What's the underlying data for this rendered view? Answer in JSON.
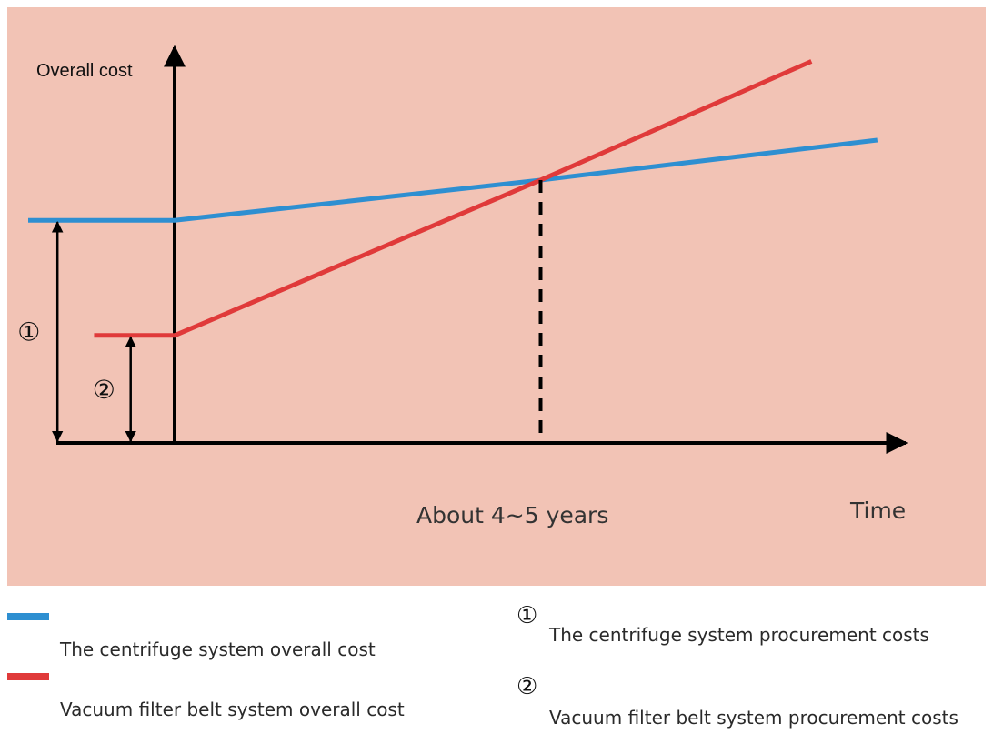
{
  "chart_data": {
    "type": "line",
    "ylabel": "Overall cost",
    "xlabel": "Time",
    "annotation_x_label": "About 4~5 years",
    "background_color": "#f2c3b5",
    "series": [
      {
        "name": "The centrifuge system overall cost",
        "color": "#2e8fd1",
        "points": [
          [
            -1,
            0.735
          ],
          [
            0,
            0.735
          ],
          [
            2.5,
            0.868
          ],
          [
            4.8,
            1.0
          ]
        ]
      },
      {
        "name": "Vacuum filter belt system overall cost",
        "color": "#e03a3a",
        "points": [
          [
            -0.55,
            0.355
          ],
          [
            0,
            0.355
          ],
          [
            2.5,
            0.868
          ],
          [
            4.35,
            1.26
          ]
        ]
      }
    ],
    "crossover": {
      "x": 2.5,
      "y": 0.868
    },
    "brackets": [
      {
        "symbol": "①",
        "from": 0,
        "to": 0.735,
        "x": -0.8
      },
      {
        "symbol": "②",
        "from": 0,
        "to": 0.355,
        "x": -0.3
      }
    ]
  },
  "legend": {
    "items": [
      {
        "text": "The centrifuge system overall cost",
        "color": "#2e8fd1"
      },
      {
        "text": "Vacuum filter belt system overall cost",
        "color": "#e03a3a"
      }
    ],
    "notes": [
      {
        "symbol": "①",
        "text": "The centrifuge system procurement costs"
      },
      {
        "symbol": "②",
        "text": "Vacuum filter belt system procurement costs"
      }
    ]
  }
}
